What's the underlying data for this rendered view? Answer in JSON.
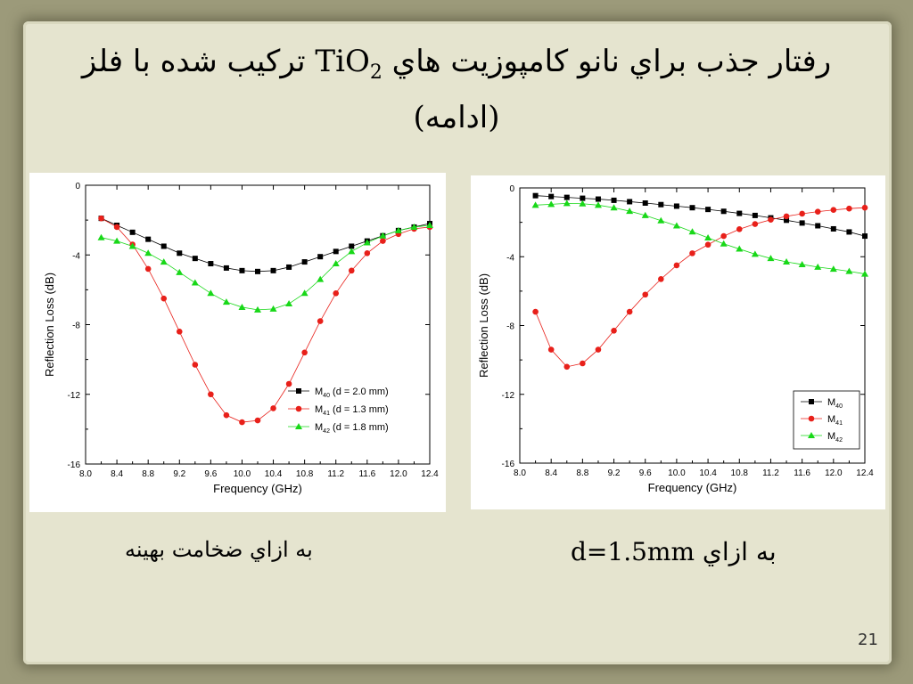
{
  "slide": {
    "title_line1": "رفتار جذب براي نانو كامپوزيت هاي TiO2 تركيب شده با فلز",
    "title_before": "رفتار جذب براي نانو كامپوزيت هاي ",
    "title_chem": "TiO",
    "title_sub": "2",
    "title_after": " تركيب شده با فلز",
    "title_line2": "(ادامه)",
    "caption_left": "به ازاي ضخامت بهينه",
    "caption_right": "به ازاي d=1.5mm",
    "page_number": "21"
  },
  "colors": {
    "M40": "#000000",
    "M41": "#e8201a",
    "M42": "#18d818"
  },
  "chart_data": [
    {
      "type": "line",
      "xlabel": "Frequency (GHz)",
      "ylabel": "Reflection Loss (dB)",
      "xlim": [
        8.0,
        12.4
      ],
      "ylim": [
        -16,
        0
      ],
      "xticks": [
        "8.0",
        "8.4",
        "8.8",
        "9.2",
        "9.6",
        "10.0",
        "10.4",
        "10.8",
        "11.2",
        "11.6",
        "12.0",
        "12.4"
      ],
      "yticks": [
        "0",
        "-4",
        "-8",
        "-12",
        "-16"
      ],
      "legend_position": "bottom-right",
      "x": [
        8.2,
        8.4,
        8.6,
        8.8,
        9.0,
        9.2,
        9.4,
        9.6,
        9.8,
        10.0,
        10.2,
        10.4,
        10.6,
        10.8,
        11.0,
        11.2,
        11.4,
        11.6,
        11.8,
        12.0,
        12.2,
        12.4
      ],
      "series": [
        {
          "name": "M40 (d = 2.0 mm)",
          "label_main": "M",
          "label_sub": "40",
          "label_rest": " (d = 2.0 mm)",
          "marker": "square",
          "color": "M40",
          "values": [
            -1.9,
            -2.3,
            -2.7,
            -3.1,
            -3.5,
            -3.9,
            -4.2,
            -4.5,
            -4.75,
            -4.9,
            -4.95,
            -4.9,
            -4.7,
            -4.4,
            -4.1,
            -3.8,
            -3.5,
            -3.2,
            -2.9,
            -2.6,
            -2.4,
            -2.2
          ]
        },
        {
          "name": "M41 (d = 1.3 mm)",
          "label_main": "M",
          "label_sub": "41",
          "label_rest": " (d = 1.3 mm)",
          "marker": "circle",
          "color": "M41",
          "values": [
            -1.9,
            -2.4,
            -3.4,
            -4.8,
            -6.5,
            -8.4,
            -10.3,
            -12.0,
            -13.2,
            -13.6,
            -13.5,
            -12.8,
            -11.4,
            -9.6,
            -7.8,
            -6.2,
            -4.9,
            -3.9,
            -3.2,
            -2.8,
            -2.5,
            -2.4
          ]
        },
        {
          "name": "M42 (d = 1.8 mm)",
          "label_main": "M",
          "label_sub": "42",
          "label_rest": " (d = 1.8 mm)",
          "marker": "triangle",
          "color": "M42",
          "values": [
            -3.0,
            -3.2,
            -3.5,
            -3.9,
            -4.4,
            -5.0,
            -5.6,
            -6.2,
            -6.7,
            -7.0,
            -7.15,
            -7.1,
            -6.8,
            -6.2,
            -5.4,
            -4.5,
            -3.8,
            -3.3,
            -2.9,
            -2.6,
            -2.4,
            -2.3
          ]
        }
      ]
    },
    {
      "type": "line",
      "xlabel": "Frequency (GHz)",
      "ylabel": "Reflection Loss (dB)",
      "xlim": [
        8.0,
        12.4
      ],
      "ylim": [
        -16,
        0
      ],
      "xticks": [
        "8.0",
        "8.4",
        "8.8",
        "9.2",
        "9.6",
        "10.0",
        "10.4",
        "10.8",
        "11.2",
        "11.6",
        "12.0",
        "12.4"
      ],
      "yticks": [
        "0",
        "-4",
        "-8",
        "-12",
        "-16"
      ],
      "legend_position": "bottom-right",
      "x": [
        8.2,
        8.4,
        8.6,
        8.8,
        9.0,
        9.2,
        9.4,
        9.6,
        9.8,
        10.0,
        10.2,
        10.4,
        10.6,
        10.8,
        11.0,
        11.2,
        11.4,
        11.6,
        11.8,
        12.0,
        12.2,
        12.4
      ],
      "series": [
        {
          "name": "M40",
          "label_main": "M",
          "label_sub": "40",
          "label_rest": "",
          "marker": "square",
          "color": "M40",
          "values": [
            -0.45,
            -0.5,
            -0.55,
            -0.6,
            -0.65,
            -0.72,
            -0.8,
            -0.88,
            -0.97,
            -1.06,
            -1.15,
            -1.25,
            -1.36,
            -1.48,
            -1.6,
            -1.74,
            -1.88,
            -2.04,
            -2.2,
            -2.38,
            -2.56,
            -2.8
          ]
        },
        {
          "name": "M41",
          "label_main": "M",
          "label_sub": "41",
          "label_rest": "",
          "marker": "circle",
          "color": "M41",
          "values": [
            -7.2,
            -9.4,
            -10.4,
            -10.2,
            -9.4,
            -8.3,
            -7.2,
            -6.2,
            -5.3,
            -4.5,
            -3.8,
            -3.3,
            -2.8,
            -2.4,
            -2.1,
            -1.85,
            -1.65,
            -1.5,
            -1.38,
            -1.28,
            -1.2,
            -1.15
          ]
        },
        {
          "name": "M42",
          "label_main": "M",
          "label_sub": "42",
          "label_rest": "",
          "marker": "triangle",
          "color": "M42",
          "values": [
            -1.0,
            -0.95,
            -0.9,
            -0.92,
            -1.0,
            -1.15,
            -1.35,
            -1.6,
            -1.9,
            -2.2,
            -2.55,
            -2.9,
            -3.25,
            -3.55,
            -3.85,
            -4.1,
            -4.3,
            -4.45,
            -4.6,
            -4.72,
            -4.85,
            -5.0
          ]
        }
      ]
    }
  ]
}
